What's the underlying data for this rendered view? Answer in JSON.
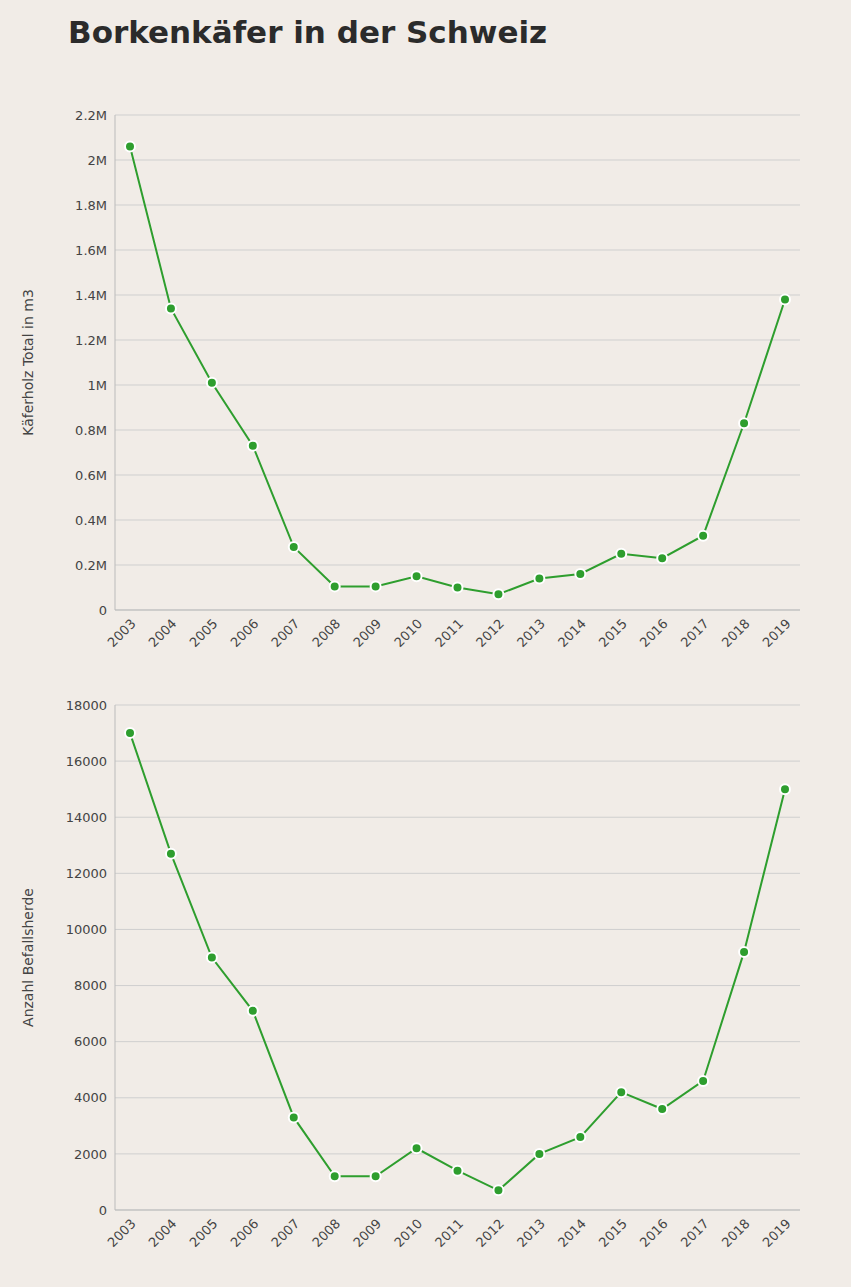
{
  "title": "Borkenkäfer in der Schweiz",
  "chart_data": [
    {
      "type": "line",
      "y_label": "Käferholz Total in m3",
      "categories": [
        "2003",
        "2004",
        "2005",
        "2006",
        "2007",
        "2008",
        "2009",
        "2010",
        "2011",
        "2012",
        "2013",
        "2014",
        "2015",
        "2016",
        "2017",
        "2018",
        "2019"
      ],
      "series": [
        {
          "name": "Käferholz Total in m3",
          "color": "#2e9e2e",
          "marker": "circle",
          "values": [
            2060000,
            1340000,
            1010000,
            730000,
            280000,
            105000,
            105000,
            150000,
            100000,
            70000,
            140000,
            160000,
            250000,
            230000,
            330000,
            830000,
            1380000
          ]
        }
      ],
      "ylim": [
        0,
        2200000
      ],
      "yticks": [
        0,
        {
          "value": 200000,
          "label": "0.2M"
        },
        {
          "value": 400000,
          "label": "0.4M"
        },
        {
          "value": 600000,
          "label": "0.6M"
        },
        {
          "value": 800000,
          "label": "0.8M"
        },
        {
          "value": 1000000,
          "label": "1M"
        },
        {
          "value": 1200000,
          "label": "1.2M"
        },
        {
          "value": 1400000,
          "label": "1.4M"
        },
        {
          "value": 1600000,
          "label": "1.6M"
        },
        {
          "value": 1800000,
          "label": "1.8M"
        },
        {
          "value": 2000000,
          "label": "2M"
        },
        {
          "value": 2200000,
          "label": "2.2M"
        }
      ],
      "grid": true
    },
    {
      "type": "line",
      "y_label": "Anzahl Befallsherde",
      "categories": [
        "2003",
        "2004",
        "2005",
        "2006",
        "2007",
        "2008",
        "2009",
        "2010",
        "2011",
        "2012",
        "2013",
        "2014",
        "2015",
        "2016",
        "2017",
        "2018",
        "2019"
      ],
      "series": [
        {
          "name": "Anzahl Befallsherde",
          "color": "#2e9e2e",
          "marker": "circle",
          "values": [
            17000,
            12700,
            9000,
            7100,
            3300,
            1200,
            1200,
            2200,
            1400,
            700,
            2000,
            2600,
            4200,
            3600,
            4600,
            9200,
            15000
          ]
        }
      ],
      "ylim": [
        0,
        18000
      ],
      "yticks": [
        0,
        2000,
        4000,
        6000,
        8000,
        10000,
        12000,
        14000,
        16000,
        18000
      ],
      "grid": true
    }
  ]
}
